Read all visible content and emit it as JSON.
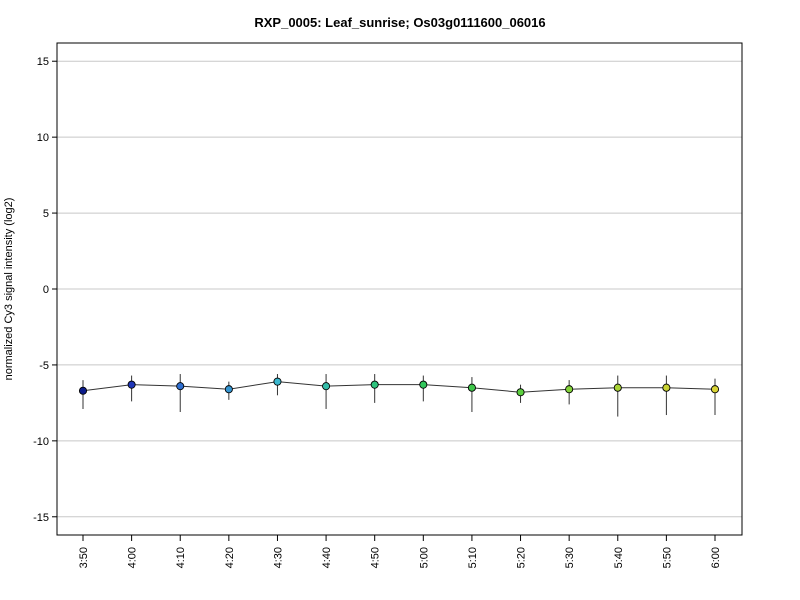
{
  "chart_data": {
    "type": "line",
    "title": "RXP_0005: Leaf_sunrise; Os03g0111600_06016",
    "xlabel": "",
    "ylabel": "normalized Cy3 signal intensity (log2)",
    "ylim": [
      -16.2,
      16.2
    ],
    "yticks": [
      -15,
      -10,
      -5,
      0,
      5,
      10,
      15
    ],
    "ytick_labels": [
      "-15",
      "-10",
      "-5",
      "0",
      "5",
      "10",
      "15"
    ],
    "grid": "horizontal",
    "categories": [
      "3:50",
      "4:00",
      "4:10",
      "4:20",
      "4:30",
      "4:40",
      "4:50",
      "5:00",
      "5:10",
      "5:20",
      "5:30",
      "5:40",
      "5:50",
      "6:00"
    ],
    "series": [
      {
        "values": [
          -6.7,
          -6.3,
          -6.4,
          -6.6,
          -6.1,
          -6.4,
          -6.3,
          -6.3,
          -6.5,
          -6.8,
          -6.6,
          -6.5,
          -6.5,
          -6.6
        ],
        "err_low": [
          -7.9,
          -7.4,
          -8.1,
          -7.3,
          -7.0,
          -7.9,
          -7.5,
          -7.4,
          -8.1,
          -7.5,
          -7.6,
          -8.4,
          -8.3,
          -8.3
        ],
        "err_high": [
          -6.0,
          -5.7,
          -5.6,
          -6.1,
          -5.6,
          -5.6,
          -5.6,
          -5.7,
          -5.8,
          -6.3,
          -6.0,
          -5.7,
          -5.7,
          -5.9
        ],
        "colors": [
          "#0b1a8a",
          "#1f36b8",
          "#2f6fd1",
          "#3595d1",
          "#3bb8cf",
          "#34bca8",
          "#2ec47e",
          "#32c75c",
          "#3ec64a",
          "#5ccf3f",
          "#84d43a",
          "#aad436",
          "#c9d334",
          "#d9d435"
        ]
      }
    ]
  }
}
